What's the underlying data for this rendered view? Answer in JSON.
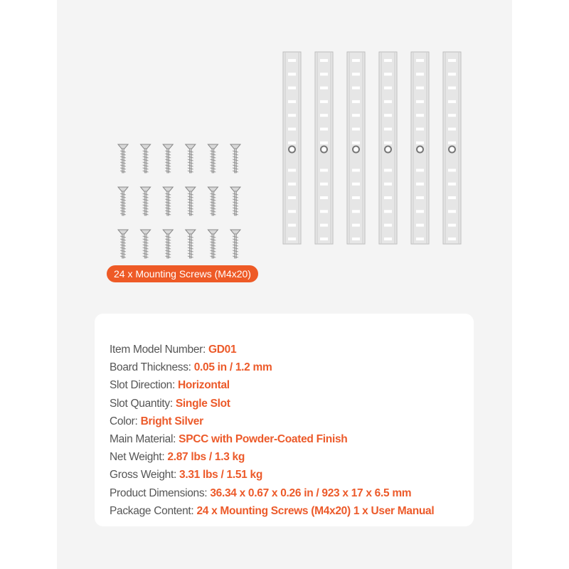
{
  "badge": "24 x Mounting Screws (M4x20)",
  "colors": {
    "accent": "#ee5a26",
    "strip": "#e6e6e6"
  },
  "visual": {
    "strip_count": 6,
    "screw_rows": 3,
    "screw_columns": 6
  },
  "specs": [
    {
      "label": "Item Model Number: ",
      "value": "GD01"
    },
    {
      "label": "Board Thickness: ",
      "value": "0.05 in / 1.2 mm"
    },
    {
      "label": "Slot Direction: ",
      "value": "Horizontal"
    },
    {
      "label": "Slot Quantity: ",
      "value": "Single Slot"
    },
    {
      "label": "Color: ",
      "value": "Bright Silver"
    },
    {
      "label": "Main Material: ",
      "value": "SPCC with Powder-Coated Finish"
    },
    {
      "label": "Net Weight: ",
      "value": "2.87 lbs / 1.3 kg"
    },
    {
      "label": "Gross Weight: ",
      "value": "3.31 lbs / 1.51 kg"
    },
    {
      "label": "Product Dimensions: ",
      "value": "36.34 x 0.67 x 0.26 in / 923 x 17 x 6.5 mm"
    },
    {
      "label": "Package Content: ",
      "value": "24 x Mounting Screws (M4x20)    1 x User Manual"
    }
  ]
}
